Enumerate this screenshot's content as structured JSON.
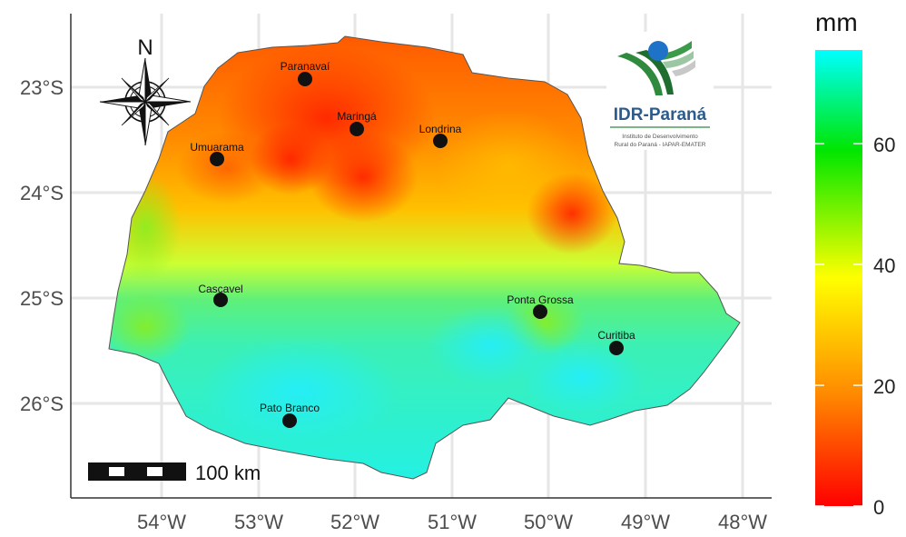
{
  "legend": {
    "title": "mm",
    "ticks": [
      "0",
      "20",
      "40",
      "60"
    ],
    "colors": [
      "#ff0000",
      "#ff8c00",
      "#ffff00",
      "#00e600",
      "#00ffff"
    ]
  },
  "axes": {
    "x_labels": [
      "54°W",
      "53°W",
      "52°W",
      "51°W",
      "50°W",
      "49°W",
      "48°W"
    ],
    "y_labels": [
      "23°S",
      "24°S",
      "25°S",
      "26°S"
    ]
  },
  "cities": [
    {
      "name": "Paranavaí"
    },
    {
      "name": "Maringá"
    },
    {
      "name": "Londrina"
    },
    {
      "name": "Umuarama"
    },
    {
      "name": "Cascavel"
    },
    {
      "name": "Ponta Grossa"
    },
    {
      "name": "Curitiba"
    },
    {
      "name": "Pato Branco"
    }
  ],
  "scale_bar": {
    "label": "100 km"
  },
  "compass": {
    "label": "N"
  },
  "logo": {
    "title": "IDR-Paraná",
    "subtitle_line1": "Instituto de Desenvolvimento",
    "subtitle_line2": "Rural do Paraná - IAPAR-EMATER"
  }
}
